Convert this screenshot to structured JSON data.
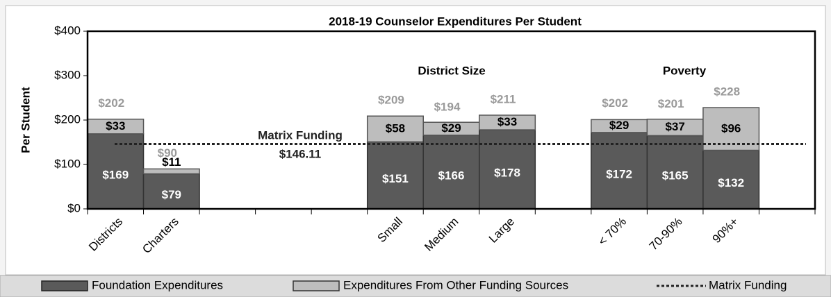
{
  "chart_data": {
    "type": "bar",
    "stacked": true,
    "title": "2018-19 Counselor Expenditures Per Student",
    "y_label": "Per Student",
    "categories": [
      "Districts",
      "Charters",
      null,
      null,
      null,
      "Small",
      "Medium",
      "Large",
      null,
      "< 70%",
      "70-90%",
      "90%+",
      null
    ],
    "series": [
      {
        "name": "Foundation Expenditures",
        "color": "#5a5a5a",
        "values": [
          169,
          79,
          null,
          null,
          null,
          151,
          166,
          178,
          null,
          172,
          165,
          132,
          null
        ],
        "value_labels": [
          "$169",
          "$79",
          null,
          null,
          null,
          "$151",
          "$166",
          "$178",
          null,
          "$172",
          "$165",
          "$132",
          null
        ]
      },
      {
        "name": "Expenditures From Other Funding Sources",
        "color": "#bdbdbd",
        "values": [
          33,
          11,
          null,
          null,
          null,
          58,
          29,
          33,
          null,
          29,
          37,
          96,
          null
        ],
        "value_labels": [
          "$33",
          "$11",
          null,
          null,
          null,
          "$58",
          "$29",
          "$33",
          null,
          "$29",
          "$37",
          "$96",
          null
        ]
      }
    ],
    "totals": [
      202,
      90,
      null,
      null,
      null,
      209,
      194,
      211,
      null,
      202,
      201,
      228,
      null
    ],
    "total_labels": [
      "$202",
      "$90",
      null,
      null,
      null,
      "$209",
      "$194",
      "$211",
      null,
      "$202",
      "$201",
      "$228",
      null
    ],
    "reference_line": {
      "name": "Matrix Funding",
      "value": 146.11,
      "value_label": "$146.11"
    },
    "group_labels": [
      "District Size",
      "Poverty"
    ],
    "ylim": [
      0,
      400
    ],
    "yticks": [
      {
        "value": 0,
        "label": "$0"
      },
      {
        "value": 100,
        "label": "$100"
      },
      {
        "value": 200,
        "label": "$200"
      },
      {
        "value": 300,
        "label": "$300"
      },
      {
        "value": 400,
        "label": "$400"
      }
    ],
    "legend": "bottom"
  }
}
